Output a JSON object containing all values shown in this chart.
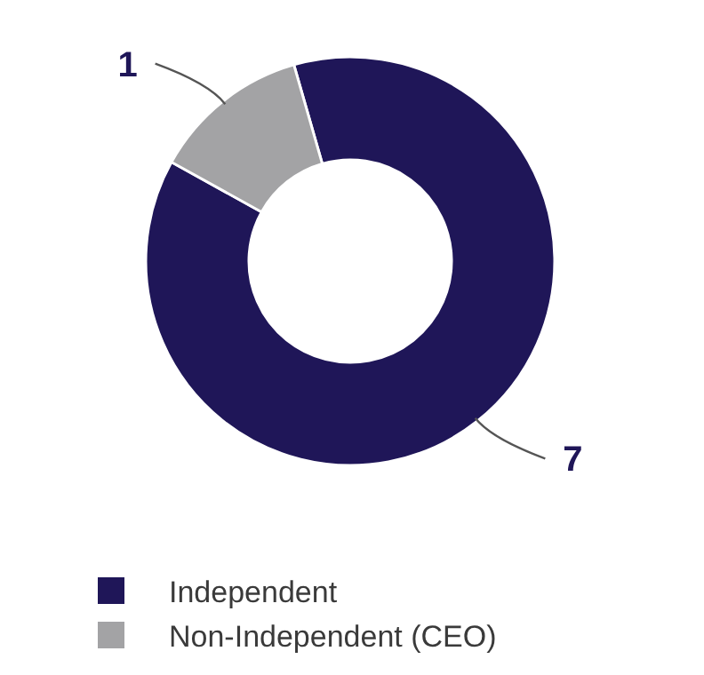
{
  "chart_data": {
    "type": "donut",
    "categories": [
      "Independent",
      "Non-Independent (CEO)"
    ],
    "values": [
      7,
      1
    ],
    "colors": [
      "#1f1658",
      "#a3a3a5"
    ],
    "data_labels": true,
    "legend": "bottom left"
  }
}
